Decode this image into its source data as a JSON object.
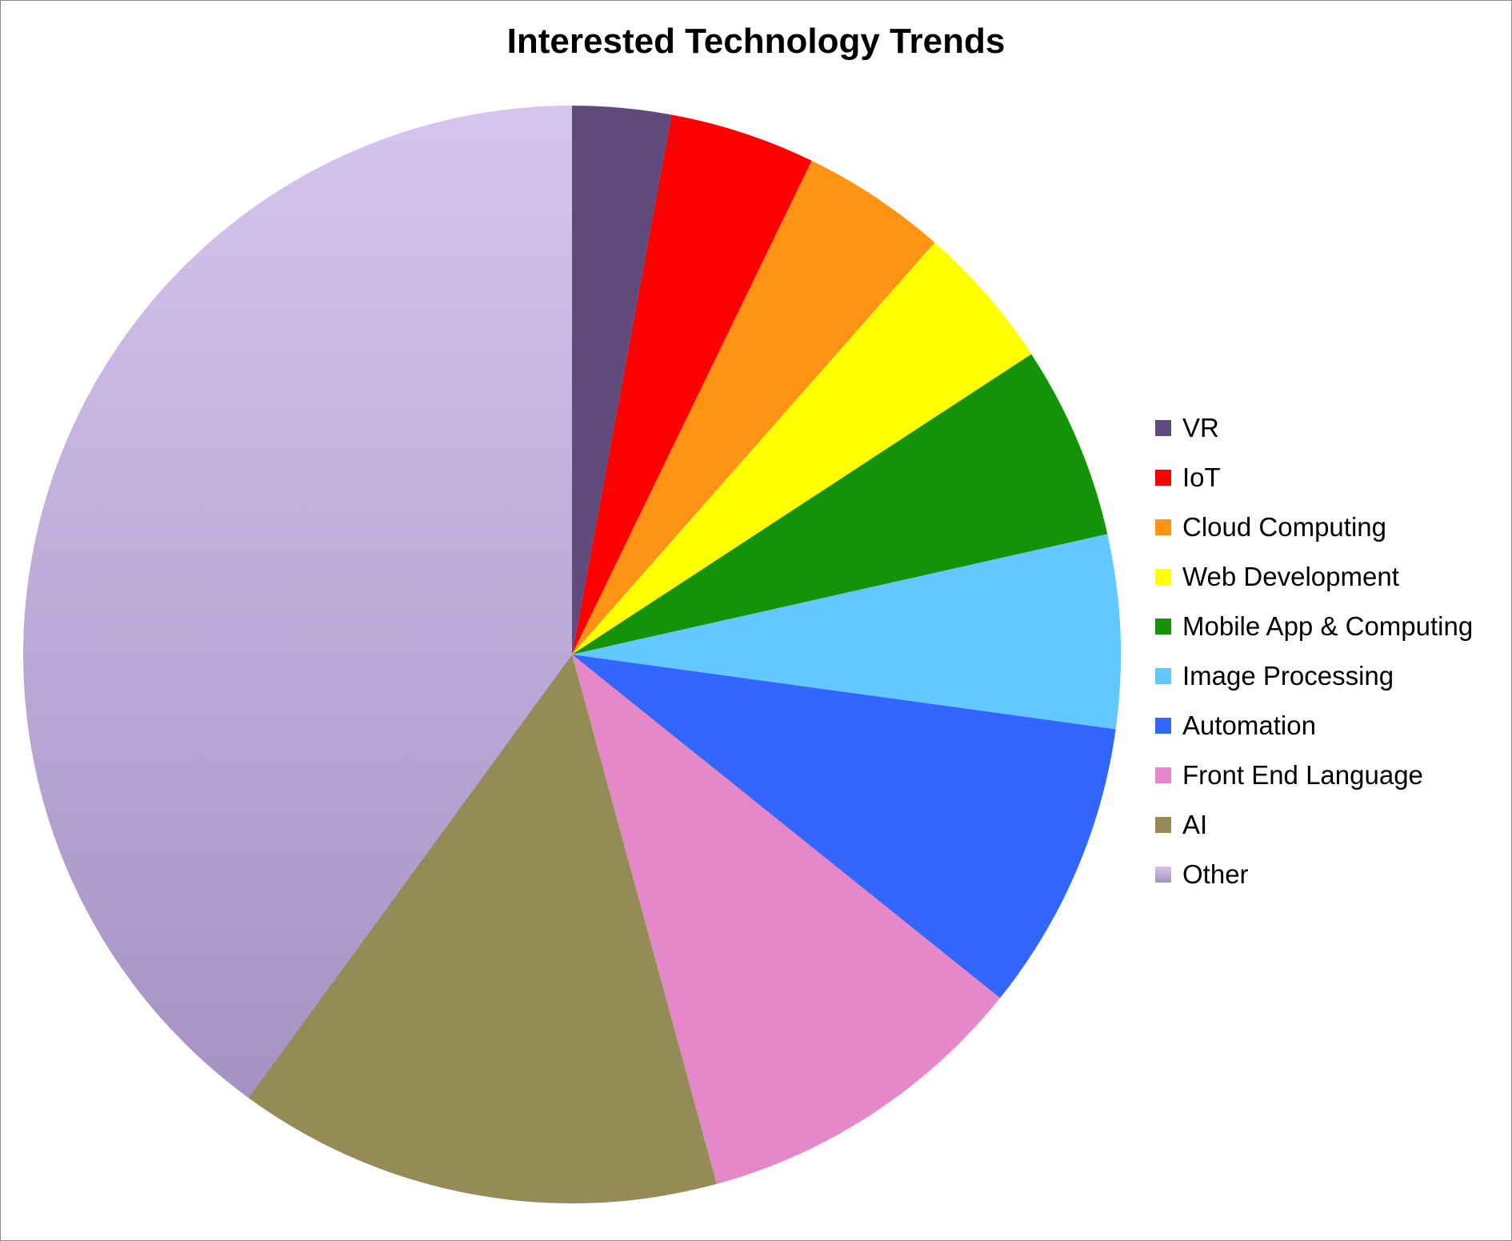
{
  "chart_data": {
    "type": "pie",
    "title": "Interested Technology Trends",
    "legend_position": "right",
    "start_angle": "12 o'clock, clockwise",
    "slices": [
      {
        "label": "VR",
        "value": 2.9,
        "color": "#604a7b"
      },
      {
        "label": "IoT",
        "value": 4.3,
        "color": "#ff0000"
      },
      {
        "label": "Cloud Computing",
        "value": 4.3,
        "color": "#ff9313"
      },
      {
        "label": "Web Development",
        "value": 4.3,
        "color": "#ffff00"
      },
      {
        "label": "Mobile App & Computing",
        "value": 5.7,
        "color": "#149308"
      },
      {
        "label": "Image Processing",
        "value": 5.7,
        "color": "#63c8ff"
      },
      {
        "label": "Automation",
        "value": 8.6,
        "color": "#3366ff"
      },
      {
        "label": "Front End Language",
        "value": 10.0,
        "color": "#e588ca"
      },
      {
        "label": "AI",
        "value": 14.3,
        "color": "#958b56"
      },
      {
        "label": "Other",
        "value": 40.0,
        "color": "#b8a6d6",
        "gradient": [
          "#d5c5ee",
          "#a592c3"
        ]
      }
    ]
  }
}
